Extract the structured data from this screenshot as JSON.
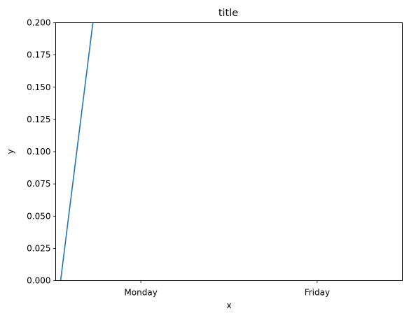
{
  "chart_data": {
    "type": "line",
    "title": "title",
    "xlabel": "x",
    "ylabel": "y",
    "x_categories": [
      "Monday",
      "Friday"
    ],
    "xlim": [
      -0.483,
      1.483
    ],
    "ylim": [
      0,
      0.2
    ],
    "yticks": [
      0.0,
      0.025,
      0.05,
      0.075,
      0.1,
      0.125,
      0.15,
      0.175,
      0.2
    ],
    "ytick_labels": [
      "0.000",
      "0.025",
      "0.050",
      "0.075",
      "0.100",
      "0.125",
      "0.150",
      "0.175",
      "0.200"
    ],
    "grid": false,
    "legend": false,
    "series": [
      {
        "color": "#1f77b4",
        "points": [
          {
            "x": -0.455,
            "y": 0.0
          },
          {
            "x": -0.272,
            "y": 0.2
          }
        ]
      }
    ]
  }
}
